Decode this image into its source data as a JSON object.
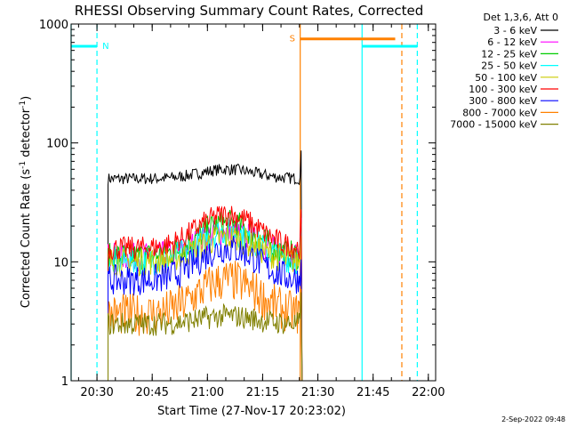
{
  "chart_data": {
    "type": "line",
    "title": "RHESSI Observing Summary Count Rates, Corrected",
    "xlabel": "Start Time (27-Nov-17 20:23:02)",
    "ylabel": "Corrected Count Rate (s",
    "ylabel_sup1": "-1",
    "ylabel_mid": " detector",
    "ylabel_sup2": "-1",
    "ylabel_end": ")",
    "xlim_minutes": [
      20.383,
      22.033
    ],
    "ylim": [
      1,
      1000
    ],
    "yscale": "log",
    "xticks": [
      {
        "label": "20:30",
        "value": 20.5
      },
      {
        "label": "20:45",
        "value": 20.75
      },
      {
        "label": "21:00",
        "value": 21.0
      },
      {
        "label": "21:15",
        "value": 21.25
      },
      {
        "label": "21:30",
        "value": 21.5
      },
      {
        "label": "21:45",
        "value": 21.75
      },
      {
        "label": "22:00",
        "value": 22.0
      }
    ],
    "yticks": [
      {
        "label": "1",
        "value": 1
      },
      {
        "label": "10",
        "value": 10
      },
      {
        "label": "100",
        "value": 100
      },
      {
        "label": "1000",
        "value": 1000
      }
    ],
    "legend_header": "Det 1,3,6, Att 0",
    "legend_position": "right",
    "series": [
      {
        "name": "3 - 6 keV",
        "color": "#000000",
        "start": 20.55,
        "end": 21.42,
        "base": 50,
        "peak": 60,
        "noise": 0.05
      },
      {
        "name": "6 - 12 keV",
        "color": "#ff00ff",
        "start": 20.55,
        "end": 21.42,
        "base": 11,
        "peak": 18,
        "noise": 0.12
      },
      {
        "name": "12 - 25 keV",
        "color": "#00cc00",
        "start": 20.55,
        "end": 21.42,
        "base": 11,
        "peak": 21,
        "noise": 0.12
      },
      {
        "name": "25 - 50 keV",
        "color": "#00ffff",
        "start": 20.55,
        "end": 21.42,
        "base": 10,
        "peak": 18,
        "noise": 0.12
      },
      {
        "name": "50 - 100 keV",
        "color": "#cccc00",
        "start": 20.55,
        "end": 21.42,
        "base": 10,
        "peak": 16,
        "noise": 0.12
      },
      {
        "name": "100 - 300 keV",
        "color": "#ff0000",
        "start": 20.55,
        "end": 21.42,
        "base": 13,
        "peak": 25,
        "noise": 0.1
      },
      {
        "name": "300 - 800 keV",
        "color": "#0000ff",
        "start": 20.55,
        "end": 21.42,
        "base": 7,
        "peak": 13,
        "noise": 0.13
      },
      {
        "name": "800 - 7000 keV",
        "color": "#ff8000",
        "start": 20.55,
        "end": 21.42,
        "base": 3.6,
        "peak": 7,
        "noise": 0.18
      },
      {
        "name": "7000 - 15000 keV",
        "color": "#808000",
        "start": 20.55,
        "end": 21.42,
        "base": 3,
        "peak": 3.5,
        "noise": 0.1
      }
    ],
    "annotations": [
      {
        "label": "N",
        "color": "#00ffff",
        "x_start": 20.383,
        "x_end": 20.5,
        "y": 650
      },
      {
        "label": "S",
        "color": "#ff8000",
        "x_start": 21.42,
        "x_end": 21.85,
        "y": 750
      },
      {
        "label": "",
        "color": "#00ffff",
        "x_start": 21.7,
        "x_end": 21.95,
        "y": 650
      }
    ],
    "vertical_lines": [
      {
        "x": 20.383,
        "color": "#00ffff",
        "style": "solid"
      },
      {
        "x": 20.5,
        "color": "#00ffff",
        "style": "dashed"
      },
      {
        "x": 21.42,
        "color": "#ff8000",
        "style": "solid"
      },
      {
        "x": 21.7,
        "color": "#00ffff",
        "style": "solid"
      },
      {
        "x": 21.88,
        "color": "#ff8000",
        "style": "dashed"
      },
      {
        "x": 21.95,
        "color": "#00ffff",
        "style": "dashed"
      }
    ]
  },
  "timestamp": "2-Sep-2022 09:48"
}
